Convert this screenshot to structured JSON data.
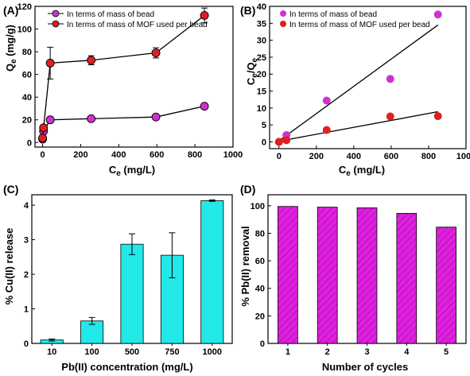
{
  "chart_data": [
    {
      "panel": "(A)",
      "type": "line",
      "xlabel": "Ce (mg/L)",
      "xlabel_main": "C",
      "xlabel_sub": "e",
      "xlabel_unit": " (mg/L)",
      "ylabel": "Qe (mg/g)",
      "ylabel_main": "Q",
      "ylabel_sub": "e",
      "ylabel_unit": " (mg/g)",
      "xlim": [
        -40,
        1000
      ],
      "ylim": [
        -4,
        120
      ],
      "xticks": [
        0,
        200,
        400,
        600,
        800,
        1000
      ],
      "yticks": [
        0,
        20,
        40,
        60,
        80,
        100,
        120
      ],
      "legend_position": "top-left",
      "series": [
        {
          "name": "In terms of mass of bead",
          "color": "#cc33cc",
          "x": [
            0,
            5,
            40,
            255,
            595,
            850
          ],
          "y": [
            3,
            10,
            20,
            21,
            22.5,
            32
          ],
          "err": [
            0,
            0,
            2.5,
            1.5,
            1.5,
            1.5
          ]
        },
        {
          "name": "In terms of mass of MOF used per bead",
          "color": "#e02020",
          "x": [
            0,
            5,
            40,
            255,
            595,
            850
          ],
          "y": [
            4,
            13,
            70,
            72.5,
            79,
            112
          ],
          "err": [
            0,
            0,
            14,
            4,
            4.5,
            6.5
          ]
        }
      ]
    },
    {
      "panel": "(B)",
      "type": "scatter",
      "xlabel": "Ce (mg/L)",
      "xlabel_main": "C",
      "xlabel_sub": "e",
      "xlabel_unit": " (mg/L)",
      "ylabel": "Ce/Qe",
      "ylabel_main1": "C",
      "ylabel_sub1": "e",
      "ylabel_slash": "/Q",
      "ylabel_sub2": "e",
      "xlim": [
        -50,
        1000
      ],
      "ylim": [
        -2,
        40
      ],
      "xticks": [
        0,
        200,
        400,
        600,
        800,
        1000
      ],
      "yticks": [
        0,
        5,
        10,
        15,
        20,
        25,
        30,
        35,
        40
      ],
      "legend_position": "top-left",
      "series": [
        {
          "name": "In terms of mass of bead",
          "color": "#cc33cc",
          "x": [
            0,
            40,
            255,
            595,
            850
          ],
          "y": [
            0,
            2,
            12.2,
            18.6,
            37.6
          ],
          "fit": [
            [
              0,
              0.3
            ],
            [
              850,
              34.5
            ]
          ]
        },
        {
          "name": "In terms of mass of MOF used per bead",
          "color": "#e02020",
          "x": [
            0,
            40,
            255,
            595,
            850
          ],
          "y": [
            0,
            0.5,
            3.5,
            7.5,
            7.6
          ],
          "fit": [
            [
              0,
              0.2
            ],
            [
              850,
              8.9
            ]
          ]
        }
      ]
    },
    {
      "panel": "(C)",
      "type": "bar",
      "xlabel": "Pb(II) concentration (mg/L)",
      "ylabel": "% Cu(II) release",
      "ylim": [
        0,
        4.3
      ],
      "yticks": [
        0,
        1,
        2,
        3,
        4
      ],
      "categories": [
        "10",
        "100",
        "500",
        "750",
        "1000"
      ],
      "values": [
        0.1,
        0.65,
        2.87,
        2.55,
        4.13
      ],
      "err": [
        0.03,
        0.1,
        0.3,
        0.65,
        0.02
      ],
      "color": "#22e8e8"
    },
    {
      "panel": "(D)",
      "type": "bar",
      "xlabel": "Number of cycles",
      "ylabel": "% Pb(II) removal",
      "ylim": [
        0,
        108
      ],
      "yticks": [
        0,
        20,
        40,
        60,
        80,
        100
      ],
      "categories": [
        "1",
        "2",
        "3",
        "4",
        "5"
      ],
      "values": [
        99.5,
        99,
        98.5,
        94.5,
        84.5
      ],
      "color": "#e020e0",
      "hatch": true
    }
  ]
}
